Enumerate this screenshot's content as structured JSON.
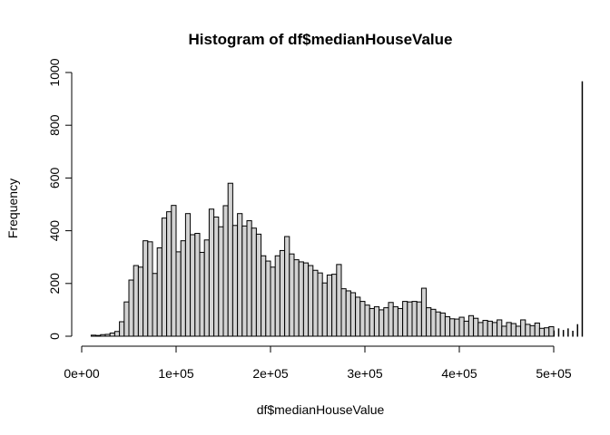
{
  "chart_data": {
    "type": "bar",
    "title": "Histogram of df$medianHouseValue",
    "xlabel": "df$medianHouseValue",
    "ylabel": "Frequency",
    "bin_width": 5000,
    "bin_start": 10000,
    "xlim": [
      0,
      500001
    ],
    "ylim": [
      0,
      1000
    ],
    "x_ticks": [
      {
        "value": 0,
        "label": "0e+00"
      },
      {
        "value": 100000,
        "label": "1e+05"
      },
      {
        "value": 200000,
        "label": "2e+05"
      },
      {
        "value": 300000,
        "label": "3e+05"
      },
      {
        "value": 400000,
        "label": "4e+05"
      },
      {
        "value": 500000,
        "label": "5e+05"
      }
    ],
    "y_ticks": [
      {
        "value": 0,
        "label": "0"
      },
      {
        "value": 200,
        "label": "200"
      },
      {
        "value": 400,
        "label": "400"
      },
      {
        "value": 600,
        "label": "600"
      },
      {
        "value": 800,
        "label": "800"
      },
      {
        "value": 1000,
        "label": "1000"
      }
    ],
    "values": [
      4,
      3,
      6,
      7,
      12,
      18,
      55,
      130,
      213,
      268,
      262,
      362,
      358,
      238,
      335,
      448,
      472,
      496,
      320,
      362,
      465,
      385,
      390,
      318,
      365,
      482,
      452,
      415,
      495,
      580,
      420,
      465,
      418,
      438,
      410,
      387,
      305,
      285,
      262,
      305,
      325,
      378,
      312,
      290,
      282,
      278,
      268,
      250,
      240,
      202,
      232,
      235,
      272,
      180,
      172,
      165,
      148,
      132,
      118,
      105,
      112,
      100,
      108,
      128,
      112,
      105,
      132,
      130,
      132,
      130,
      182,
      108,
      102,
      92,
      88,
      74,
      66,
      65,
      72,
      57,
      78,
      68,
      52,
      60,
      57,
      52,
      62,
      38,
      52,
      48,
      38,
      62,
      45,
      40,
      50,
      30,
      32,
      36,
      20,
      28,
      22,
      28,
      19,
      44,
      965
    ]
  }
}
